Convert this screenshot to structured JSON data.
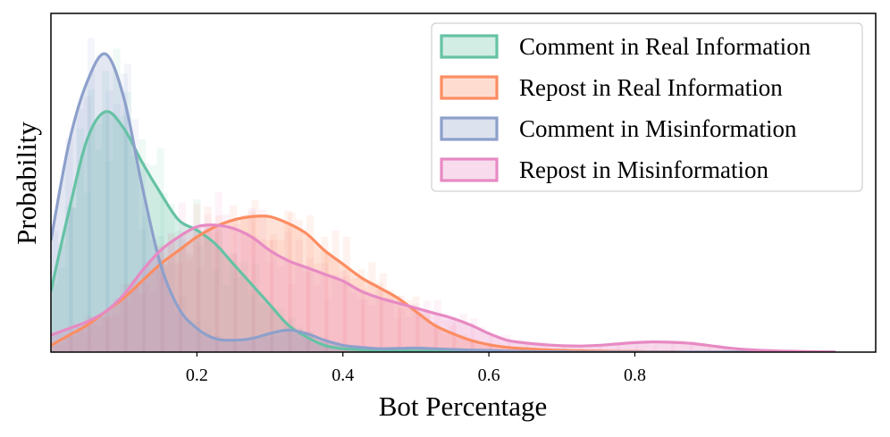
{
  "chart_data": {
    "type": "area",
    "xlabel": "Bot Percentage",
    "ylabel": "Probability",
    "xlim": [
      0.0,
      1.13
    ],
    "ylim": [
      0.0,
      1.0
    ],
    "x_ticks": [
      0.2,
      0.4,
      0.6,
      0.8
    ],
    "y_ticks_visible": false,
    "grid": false,
    "legend_position": "top-right",
    "x": [
      0.0,
      0.025,
      0.05,
      0.075,
      0.1,
      0.125,
      0.15,
      0.175,
      0.2,
      0.225,
      0.25,
      0.275,
      0.3,
      0.325,
      0.35,
      0.375,
      0.4,
      0.425,
      0.45,
      0.475,
      0.5,
      0.525,
      0.55,
      0.575,
      0.6,
      0.625,
      0.65,
      0.675,
      0.7,
      0.725,
      0.75,
      0.775,
      0.8,
      0.825,
      0.85,
      0.875,
      0.9,
      0.925,
      0.95,
      0.975,
      1.0,
      1.025,
      1.05,
      1.075
    ],
    "series": [
      {
        "name": "Comment in Real Information",
        "color": "#66c2a5",
        "values": [
          0.18,
          0.42,
          0.63,
          0.71,
          0.66,
          0.56,
          0.47,
          0.39,
          0.36,
          0.32,
          0.26,
          0.2,
          0.14,
          0.08,
          0.045,
          0.02,
          0.01,
          0.007,
          0.005,
          0.004,
          0.003,
          0.002,
          0.002,
          0.001,
          0.001,
          0,
          0,
          0,
          0,
          0,
          0,
          0,
          0,
          0,
          0,
          0,
          0,
          0,
          0,
          0,
          0,
          0,
          0,
          0
        ]
      },
      {
        "name": "Repost in Real Information",
        "color": "#fc8d62",
        "values": [
          0.02,
          0.05,
          0.08,
          0.12,
          0.16,
          0.21,
          0.26,
          0.3,
          0.34,
          0.37,
          0.39,
          0.4,
          0.4,
          0.38,
          0.35,
          0.3,
          0.26,
          0.22,
          0.19,
          0.16,
          0.12,
          0.08,
          0.055,
          0.035,
          0.022,
          0.014,
          0.01,
          0.007,
          0.005,
          0.004,
          0.003,
          0.002,
          0.002,
          0.001,
          0.001,
          0,
          0,
          0,
          0,
          0,
          0,
          0,
          0,
          0
        ]
      },
      {
        "name": "Comment in Misinformation",
        "color": "#8da0cb",
        "values": [
          0.33,
          0.62,
          0.8,
          0.88,
          0.75,
          0.49,
          0.26,
          0.13,
          0.07,
          0.04,
          0.035,
          0.04,
          0.055,
          0.065,
          0.055,
          0.035,
          0.02,
          0.014,
          0.01,
          0.011,
          0.012,
          0.01,
          0.008,
          0.006,
          0.005,
          0.003,
          0.002,
          0.001,
          0.001,
          0,
          0,
          0,
          0,
          0,
          0,
          0,
          0,
          0,
          0,
          0,
          0,
          0,
          0,
          0
        ]
      },
      {
        "name": "Repost in Misinformation",
        "color": "#e78ac3",
        "values": [
          0.05,
          0.07,
          0.09,
          0.12,
          0.17,
          0.24,
          0.3,
          0.34,
          0.37,
          0.375,
          0.365,
          0.34,
          0.3,
          0.27,
          0.25,
          0.23,
          0.21,
          0.18,
          0.16,
          0.145,
          0.13,
          0.115,
          0.1,
          0.08,
          0.055,
          0.035,
          0.027,
          0.022,
          0.019,
          0.018,
          0.02,
          0.024,
          0.028,
          0.03,
          0.029,
          0.026,
          0.02,
          0.013,
          0.008,
          0.005,
          0.003,
          0.002,
          0.001,
          0.0
        ]
      }
    ]
  }
}
